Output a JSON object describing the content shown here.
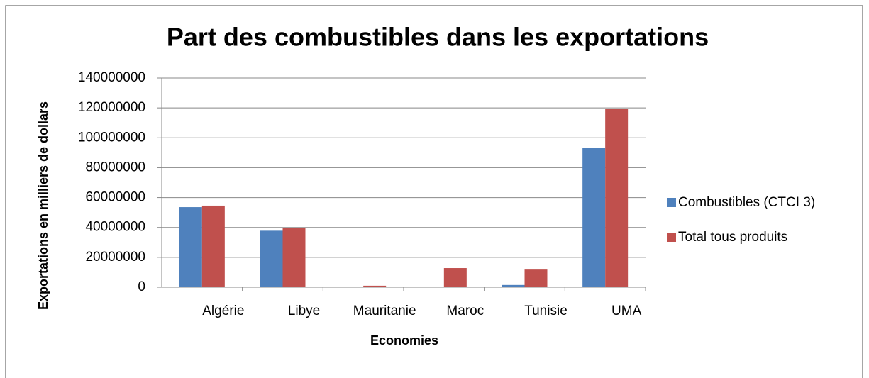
{
  "chart_data": {
    "type": "bar",
    "title": "Part des combustibles dans les exportations",
    "xlabel": "Economies",
    "ylabel": "Exportations en milliers de dollars",
    "categories": [
      "Algérie",
      "Libye",
      "Mauritanie",
      "Maroc",
      "Tunisie",
      "UMA"
    ],
    "series": [
      {
        "name": "Combustibles (CTCI 3)",
        "color": "#4f81bd",
        "values": [
          53600000,
          37800000,
          100000,
          300000,
          1500000,
          93400000
        ]
      },
      {
        "name": "Total tous produits",
        "color": "#c0504d",
        "values": [
          54600000,
          39500000,
          1000000,
          12800000,
          11800000,
          119600000
        ]
      }
    ],
    "ylim": [
      0,
      140000000
    ],
    "yticks": [
      0,
      20000000,
      40000000,
      60000000,
      80000000,
      100000000,
      120000000,
      140000000
    ],
    "grid": true,
    "legend": "right"
  }
}
